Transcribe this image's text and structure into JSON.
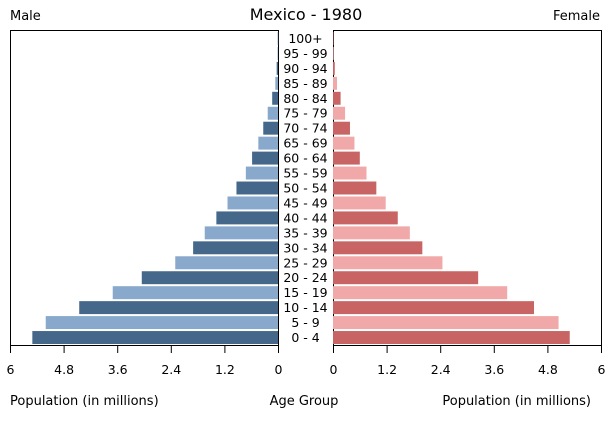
{
  "chart_data": {
    "type": "bar",
    "title": "Mexico - 1980",
    "left_header": "Male",
    "right_header": "Female",
    "left_xlabel": "Population (in millions)",
    "center_label": "Age Group",
    "right_xlabel": "Population (in millions)",
    "categories": [
      "0 - 4",
      "5 - 9",
      "10 - 14",
      "15 - 19",
      "20 - 24",
      "25 - 29",
      "30 - 34",
      "35 - 39",
      "40 - 44",
      "45 - 49",
      "50 - 54",
      "55 - 59",
      "60 - 64",
      "65 - 69",
      "70 - 74",
      "75 - 79",
      "80 - 84",
      "85 - 89",
      "90 - 94",
      "95 - 99",
      "100+"
    ],
    "xlim": [
      0,
      6
    ],
    "left_ticks": [
      "6",
      "4.8",
      "3.6",
      "2.4",
      "1.2",
      "0"
    ],
    "right_ticks": [
      "0",
      "1.2",
      "2.4",
      "3.6",
      "4.8",
      "6"
    ],
    "series": [
      {
        "name": "Male",
        "values": [
          5.5,
          5.2,
          4.45,
          3.7,
          3.05,
          2.3,
          1.9,
          1.64,
          1.38,
          1.13,
          0.93,
          0.72,
          0.58,
          0.44,
          0.33,
          0.23,
          0.13,
          0.06,
          0.03,
          0.01,
          0.005
        ]
      },
      {
        "name": "Female",
        "values": [
          5.3,
          5.05,
          4.5,
          3.9,
          3.25,
          2.45,
          2.0,
          1.72,
          1.45,
          1.18,
          0.97,
          0.75,
          0.6,
          0.48,
          0.38,
          0.27,
          0.17,
          0.09,
          0.04,
          0.015,
          0.005
        ]
      }
    ],
    "colors": {
      "male_dark": "#45678a",
      "male_light": "#88a8cc",
      "female_dark": "#c86464",
      "female_light": "#f0a8a8"
    }
  }
}
